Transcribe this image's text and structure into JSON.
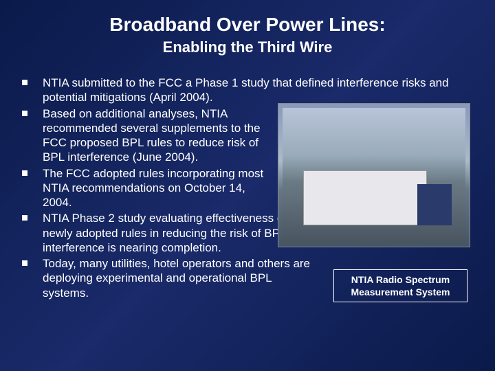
{
  "title": "Broadband Over Power Lines:",
  "subtitle": "Enabling the Third Wire",
  "bullets": [
    "NTIA submitted to the FCC a Phase 1 study that defined interference risks and potential mitigations (April 2004).",
    "Based on additional analyses, NTIA recommended several supplements to the FCC proposed BPL rules to reduce risk of BPL interference (June 2004).",
    "The FCC adopted rules incorporating most NTIA recommendations on October 14, 2004.",
    "NTIA Phase 2 study evaluating effectiveness of newly adopted rules in reducing the risk of BPL interference is nearing completion.",
    "Today, many utilities, hotel operators and others are deploying experimental and operational BPL systems."
  ],
  "caption": {
    "line1": "NTIA Radio Spectrum",
    "line2": "Measurement System"
  },
  "colors": {
    "background_start": "#0a1a4a",
    "background_mid": "#1a2a6a",
    "text": "#ffffff",
    "border": "#ffffff"
  },
  "typography": {
    "title_fontsize": 28,
    "subtitle_fontsize": 22,
    "bullet_fontsize": 17,
    "caption_fontsize": 14
  }
}
